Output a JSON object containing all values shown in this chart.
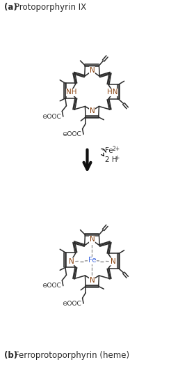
{
  "bg_color": "#ffffff",
  "bond_color": "#2a2a2a",
  "N_color": "#8B4513",
  "Fe_color": "#4169E1",
  "text_color": "#2a2a2a",
  "arrow_color": "#111111",
  "label_a_bold": "(a)",
  "label_a_rest": " Protoporphyrin IX",
  "label_b_bold": "(b)",
  "label_b_rest": " Ferroprotoporphyrin (heme)",
  "fe2plus": "Fe",
  "fe2plus_sup": "2+",
  "twoh": "2 H",
  "twoh_sup": "+"
}
